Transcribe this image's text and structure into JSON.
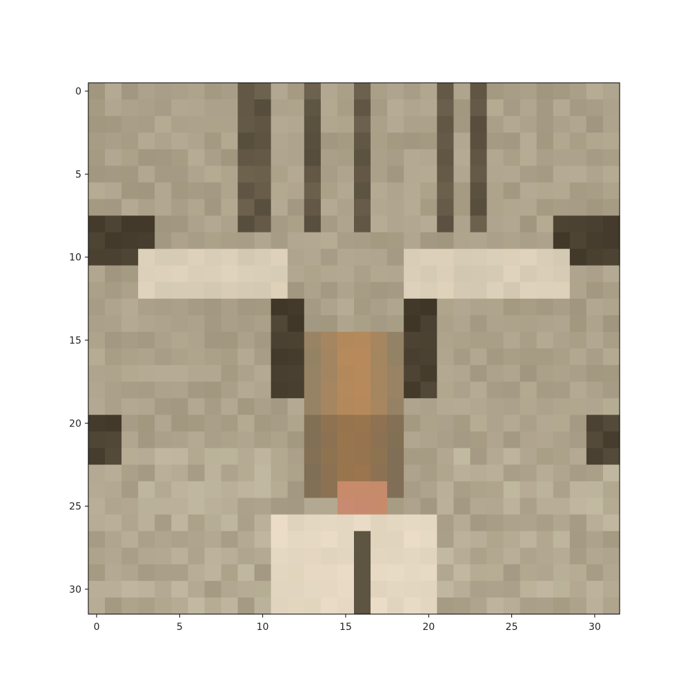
{
  "image": {
    "description_kind": "pixelated low-resolution photo (32x32)",
    "grid_size": [
      32,
      32
    ],
    "subject_hint": "close-up of a tabby cat face (fur, eyes, pink nose)",
    "palette": {
      "fur_light": "#c8bfa8",
      "fur_mid": "#8c8068",
      "fur_dark": "#3f3628",
      "nose_orange": "#c08c58",
      "nose_pink": "#c98a73",
      "highlight": "#eadcc6"
    }
  },
  "axes": {
    "x_ticks": [
      "0",
      "5",
      "10",
      "15",
      "20",
      "25",
      "30"
    ],
    "y_ticks": [
      "0",
      "5",
      "10",
      "15",
      "20",
      "25",
      "30"
    ],
    "x_tick_values": [
      0,
      5,
      10,
      15,
      20,
      25,
      30
    ],
    "y_tick_values": [
      0,
      5,
      10,
      15,
      20,
      25,
      30
    ],
    "xlim": [
      -0.5,
      31.5
    ],
    "ylim": [
      31.5,
      -0.5
    ]
  }
}
